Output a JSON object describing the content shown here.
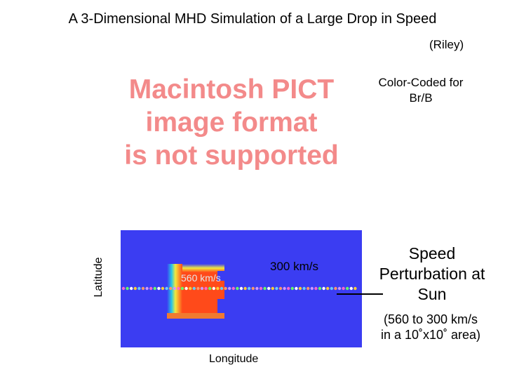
{
  "header": {
    "title": "A 3-Dimensional MHD Simulation of a Large Drop in Speed",
    "author": "(Riley)"
  },
  "placeholder_image": {
    "line1": "Macintosh PICT",
    "line2": "image format",
    "line3": "is not supported"
  },
  "annotations": {
    "color_coded_line1": "Color-Coded for",
    "color_coded_line2": "Br/B",
    "speed_high": "560 km/s",
    "speed_low": "300 km/s",
    "latitude": "Latitude",
    "longitude": "Longitude",
    "perturbation_line1": "Speed",
    "perturbation_line2": "Perturbation at",
    "perturbation_line3": "Sun",
    "range_line1": "(560 to 300 km/s",
    "range_line2": "in a 10˚x10˚ area)"
  },
  "colors": {
    "background_field": "#3b3df2",
    "placeholder_text": "#f38a8a",
    "drop_core": "#ff4a1a"
  }
}
